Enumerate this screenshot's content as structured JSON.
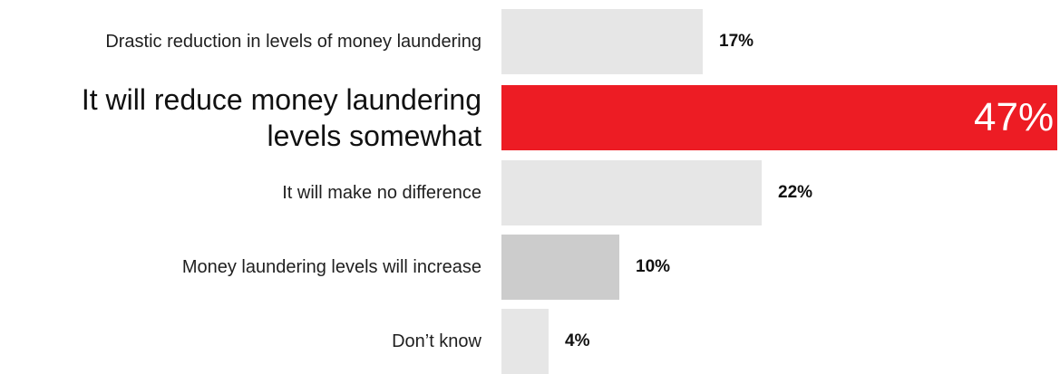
{
  "chart_data": {
    "type": "bar",
    "orientation": "horizontal",
    "categories": [
      "Drastic reduction in levels of money laundering",
      "It will reduce money laundering levels somewhat",
      "It will make no difference",
      "Money laundering levels will increase",
      "Don’t know"
    ],
    "values": [
      17,
      47,
      22,
      10,
      4
    ],
    "value_labels": [
      "17%",
      "47%",
      "22%",
      "10%",
      "4%"
    ],
    "unit": "%",
    "xlim": [
      0,
      47
    ],
    "highlight_index": 1,
    "colors": [
      "#e6e6e6",
      "#ed1c24",
      "#e6e6e6",
      "#cccccc",
      "#e6e6e6"
    ]
  }
}
